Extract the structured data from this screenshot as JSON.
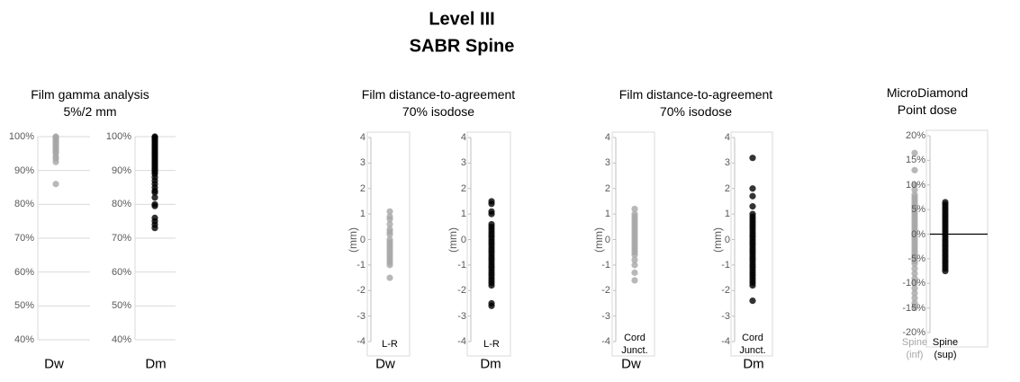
{
  "title": "Level III",
  "subtitle": "SABR Spine",
  "chart_data": [
    {
      "type": "strip",
      "title": "Film gamma analysis",
      "subtitle": "5%/2 mm",
      "grid": true,
      "ylim": [
        40,
        100
      ],
      "yticks": [
        {
          "value": 40,
          "label": "40%"
        },
        {
          "value": 50,
          "label": "50%"
        },
        {
          "value": 60,
          "label": "60%"
        },
        {
          "value": 70,
          "label": "70%"
        },
        {
          "value": 80,
          "label": "80%"
        },
        {
          "value": 90,
          "label": "90%"
        },
        {
          "value": 100,
          "label": "100%"
        }
      ],
      "panels": [
        {
          "label": "Dw",
          "series": [
            {
              "color": "#a6a6a6",
              "values": [
                100,
                99.8,
                99.5,
                99,
                98.5,
                98,
                97.5,
                97,
                96.5,
                96,
                95.5,
                95,
                94,
                93.5,
                92.5,
                86
              ]
            }
          ]
        },
        {
          "label": "Dm",
          "series": [
            {
              "color": "#000000",
              "values": [
                100,
                99.8,
                99.5,
                99,
                98.5,
                98,
                97.5,
                97,
                96.5,
                96,
                95.5,
                95,
                94.5,
                94,
                93.5,
                93,
                92.5,
                92,
                91.5,
                91,
                90.5,
                90,
                89.5,
                89,
                88,
                87,
                86,
                85,
                84,
                83.5,
                82,
                80,
                79.5,
                76,
                75,
                74,
                73
              ]
            }
          ]
        }
      ]
    },
    {
      "type": "strip",
      "title": "Film distance-to-agreement",
      "subtitle": "70% isodose",
      "grid": false,
      "ylabel": "(mm)",
      "ylim": [
        -4,
        4
      ],
      "yticks": [
        -4,
        -3,
        -2,
        -1,
        0,
        1,
        2,
        3,
        4
      ],
      "panels": [
        {
          "label": "Dw",
          "categories": [
            "L-R"
          ],
          "series": [
            {
              "color": "#a6a6a6",
              "values": [
                1.1,
                0.9,
                0.8,
                0.6,
                0.4,
                0.3,
                0.2,
                0,
                -0.1,
                -0.2,
                -0.3,
                -0.4,
                -0.5,
                -0.6,
                -0.7,
                -0.8,
                -0.9,
                -1,
                -1.5
              ]
            }
          ]
        },
        {
          "label": "Dm",
          "categories": [
            "L-R"
          ],
          "series": [
            {
              "color": "#000000",
              "values": [
                1.5,
                1.4,
                1.1,
                1.0,
                0.6,
                0.5,
                0.4,
                0.3,
                0.2,
                0.1,
                0,
                -0.1,
                -0.2,
                -0.3,
                -0.4,
                -0.5,
                -0.6,
                -0.7,
                -0.8,
                -0.9,
                -1.0,
                -1.1,
                -1.2,
                -1.3,
                -1.4,
                -1.5,
                -1.6,
                -1.7,
                -1.8,
                -2.5,
                -2.6
              ]
            }
          ]
        }
      ]
    },
    {
      "type": "strip",
      "title": "Film distance-to-agreement",
      "subtitle": "70% isodose",
      "grid": false,
      "ylabel": "(mm)",
      "ylim": [
        -4,
        4
      ],
      "yticks": [
        -4,
        -3,
        -2,
        -1,
        0,
        1,
        2,
        3,
        4
      ],
      "panels": [
        {
          "label": "Dw",
          "categories": [
            "Cord Junct."
          ],
          "series": [
            {
              "color": "#a6a6a6",
              "values": [
                1.2,
                1.0,
                0.9,
                0.8,
                0.7,
                0.6,
                0.5,
                0.4,
                0.3,
                0.2,
                0.1,
                0,
                -0.1,
                -0.2,
                -0.3,
                -0.4,
                -0.5,
                -0.6,
                -0.8,
                -1,
                -1.3,
                -1.6
              ]
            }
          ]
        },
        {
          "label": "Dm",
          "categories": [
            "Cord Junct."
          ],
          "series": [
            {
              "color": "#000000",
              "values": [
                3.2,
                2.0,
                1.7,
                1.3,
                1.0,
                0.9,
                0.8,
                0.7,
                0.6,
                0.5,
                0.4,
                0.3,
                0.2,
                0.1,
                0,
                -0.1,
                -0.2,
                -0.3,
                -0.4,
                -0.5,
                -0.6,
                -0.7,
                -0.8,
                -0.9,
                -1.0,
                -1.1,
                -1.2,
                -1.3,
                -1.4,
                -1.5,
                -1.6,
                -1.7,
                -1.8,
                -2.4
              ]
            }
          ]
        }
      ]
    },
    {
      "type": "strip",
      "title": "MicroDiamond",
      "subtitle": "Point dose",
      "grid": false,
      "zero_line": true,
      "ylim": [
        -20,
        20
      ],
      "yticks": [
        {
          "value": -20,
          "label": "-20%"
        },
        {
          "value": -15,
          "label": "-15%"
        },
        {
          "value": -10,
          "label": "-10%"
        },
        {
          "value": -5,
          "label": "-5%"
        },
        {
          "value": 0,
          "label": "0%"
        },
        {
          "value": 5,
          "label": "5%"
        },
        {
          "value": 10,
          "label": "10%"
        },
        {
          "value": 15,
          "label": "15%"
        },
        {
          "value": 20,
          "label": "20%"
        }
      ],
      "panels": [
        {
          "categories": [
            "Spine (inf)",
            "Spine (sup)"
          ],
          "series": [
            {
              "color": "#a6a6a6",
              "values": [
                16.5,
                13,
                10,
                9,
                8,
                7.5,
                7,
                6.5,
                6,
                5.5,
                5,
                4.5,
                4,
                3.5,
                3,
                2.5,
                2,
                1.5,
                1,
                0.5,
                0,
                -0.5,
                -1,
                -1.5,
                -2,
                -2.5,
                -3,
                -3.5,
                -4,
                -4.5,
                -5,
                -5.5,
                -6,
                -7,
                -8,
                -9,
                -10,
                -11,
                -12,
                -13,
                -14,
                -15
              ]
            },
            {
              "color": "#000000",
              "values": [
                6.5,
                6,
                5.5,
                5,
                4.5,
                4,
                3.5,
                3,
                2.5,
                2,
                1.5,
                1,
                0.5,
                0,
                -0.5,
                -1,
                -1.5,
                -2,
                -2.5,
                -3,
                -3.5,
                -4,
                -4.5,
                -5,
                -5.5,
                -6,
                -6.5,
                -7,
                -7.5
              ]
            }
          ]
        }
      ]
    }
  ]
}
